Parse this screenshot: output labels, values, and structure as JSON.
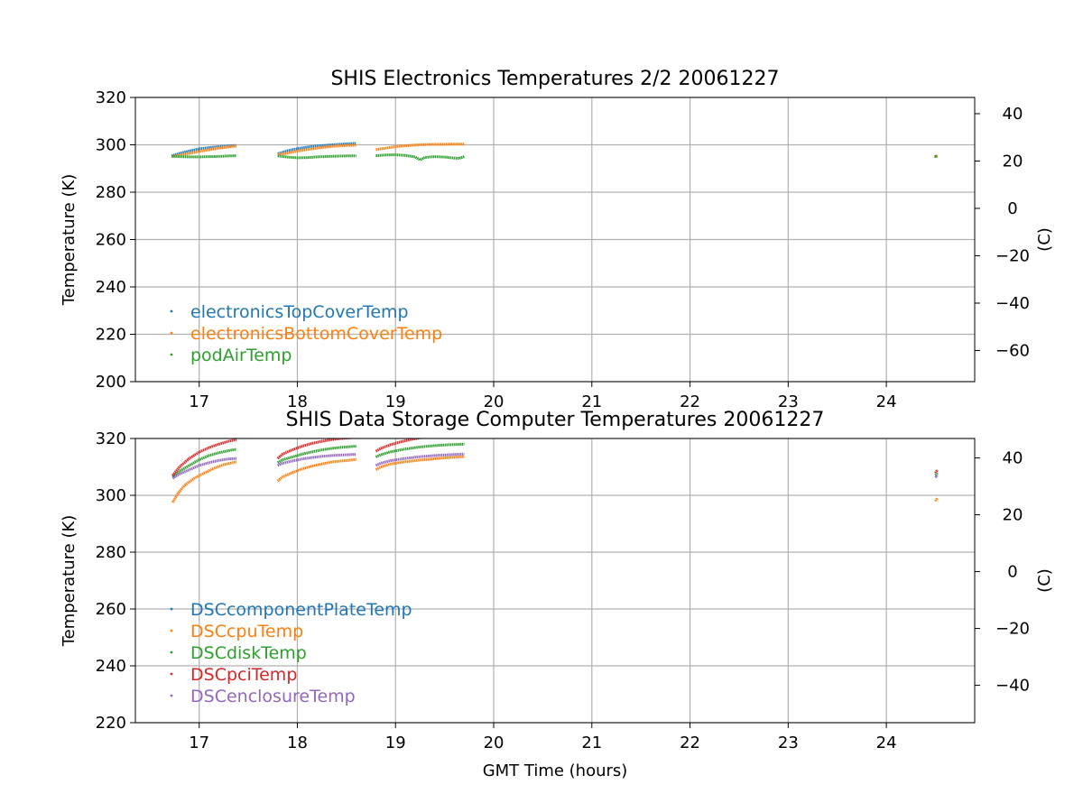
{
  "chart_data": [
    {
      "type": "scatter",
      "title": "SHIS Electronics Temperatures 2/2 20061227",
      "xlabel": "",
      "ylabel": "Temperature (K)",
      "ylabel_right": "(C)",
      "xlim": [
        16.35,
        24.9
      ],
      "ylim": [
        200,
        320
      ],
      "xticks": [
        17,
        18,
        19,
        20,
        21,
        22,
        23,
        24
      ],
      "yticks": [
        200,
        220,
        240,
        260,
        280,
        300,
        320
      ],
      "yticks_right": [
        -60,
        -40,
        -20,
        0,
        20,
        40
      ],
      "grid": true,
      "legend_position": "lower-left",
      "series": [
        {
          "name": "electronicsTopCoverTemp",
          "color": "#1f77b4",
          "segments": [
            [
              [
                16.72,
                295.3
              ],
              [
                16.8,
                296.4
              ],
              [
                16.9,
                297.4
              ],
              [
                17.0,
                298.3
              ],
              [
                17.1,
                298.8
              ],
              [
                17.2,
                299.2
              ],
              [
                17.3,
                299.5
              ],
              [
                17.38,
                299.7
              ]
            ],
            [
              [
                17.8,
                296.2
              ],
              [
                17.9,
                297.5
              ],
              [
                18.0,
                298.4
              ],
              [
                18.1,
                299.0
              ],
              [
                18.2,
                299.5
              ],
              [
                18.3,
                299.8
              ],
              [
                18.4,
                300.1
              ],
              [
                18.5,
                300.4
              ],
              [
                18.6,
                300.6
              ]
            ]
          ]
        },
        {
          "name": "electronicsBottomCoverTemp",
          "color": "#ff7f0e",
          "segments": [
            [
              [
                16.72,
                295.0
              ],
              [
                16.8,
                295.6
              ],
              [
                16.9,
                296.4
              ],
              [
                17.0,
                297.2
              ],
              [
                17.1,
                297.9
              ],
              [
                17.2,
                298.6
              ],
              [
                17.3,
                299.1
              ],
              [
                17.38,
                299.5
              ]
            ],
            [
              [
                17.8,
                295.8
              ],
              [
                17.9,
                296.5
              ],
              [
                18.0,
                297.3
              ],
              [
                18.1,
                298.0
              ],
              [
                18.2,
                298.6
              ],
              [
                18.3,
                299.1
              ],
              [
                18.4,
                299.5
              ],
              [
                18.5,
                299.7
              ],
              [
                18.6,
                299.9
              ]
            ],
            [
              [
                18.8,
                298.0
              ],
              [
                18.9,
                298.6
              ],
              [
                19.0,
                299.2
              ],
              [
                19.1,
                299.6
              ],
              [
                19.2,
                299.9
              ],
              [
                19.3,
                300.1
              ],
              [
                19.4,
                300.2
              ],
              [
                19.5,
                300.2
              ],
              [
                19.6,
                300.3
              ],
              [
                19.7,
                300.3
              ]
            ],
            [
              [
                24.5,
                295.1
              ],
              [
                24.52,
                295.3
              ]
            ]
          ]
        },
        {
          "name": "podAirTemp",
          "color": "#2ca02c",
          "segments": [
            [
              [
                16.72,
                295.2
              ],
              [
                16.8,
                295.0
              ],
              [
                16.9,
                294.9
              ],
              [
                17.0,
                294.9
              ],
              [
                17.1,
                295.0
              ],
              [
                17.2,
                295.1
              ],
              [
                17.3,
                295.3
              ],
              [
                17.38,
                295.4
              ]
            ],
            [
              [
                17.8,
                295.3
              ],
              [
                17.9,
                294.8
              ],
              [
                18.0,
                294.5
              ],
              [
                18.1,
                294.6
              ],
              [
                18.2,
                294.9
              ],
              [
                18.3,
                295.1
              ],
              [
                18.4,
                295.2
              ],
              [
                18.5,
                295.3
              ],
              [
                18.6,
                295.3
              ]
            ],
            [
              [
                18.8,
                295.4
              ],
              [
                18.9,
                295.7
              ],
              [
                19.0,
                295.8
              ],
              [
                19.1,
                295.5
              ],
              [
                19.2,
                294.9
              ],
              [
                19.25,
                293.6
              ],
              [
                19.3,
                294.7
              ],
              [
                19.4,
                295.0
              ],
              [
                19.5,
                294.8
              ],
              [
                19.6,
                294.4
              ],
              [
                19.65,
                294.3
              ],
              [
                19.7,
                295.0
              ]
            ],
            [
              [
                24.49,
                295.0
              ],
              [
                24.52,
                295.2
              ]
            ]
          ]
        }
      ]
    },
    {
      "type": "scatter",
      "title": "SHIS Data Storage Computer Temperatures 20061227",
      "xlabel": "GMT Time (hours)",
      "ylabel": "Temperature (K)",
      "ylabel_right": "(C)",
      "xlim": [
        16.35,
        24.9
      ],
      "ylim": [
        220,
        320
      ],
      "xticks": [
        17,
        18,
        19,
        20,
        21,
        22,
        23,
        24
      ],
      "yticks": [
        220,
        240,
        260,
        280,
        300,
        320
      ],
      "yticks_right": [
        -40,
        -20,
        0,
        20,
        40
      ],
      "grid": true,
      "legend_position": "lower-left",
      "series": [
        {
          "name": "DSCcomponentPlateTemp",
          "color": "#1f77b4",
          "segments": []
        },
        {
          "name": "DSCcpuTemp",
          "color": "#ff7f0e",
          "segments": [
            [
              [
                16.73,
                297.5
              ],
              [
                16.78,
                300.5
              ],
              [
                16.85,
                303.5
              ],
              [
                16.95,
                306.0
              ],
              [
                17.05,
                307.8
              ],
              [
                17.15,
                309.5
              ],
              [
                17.25,
                310.8
              ],
              [
                17.38,
                311.8
              ]
            ],
            [
              [
                17.8,
                305.0
              ],
              [
                17.85,
                306.5
              ],
              [
                17.95,
                308.0
              ],
              [
                18.05,
                309.3
              ],
              [
                18.15,
                310.3
              ],
              [
                18.25,
                311.0
              ],
              [
                18.35,
                311.7
              ],
              [
                18.45,
                312.1
              ],
              [
                18.6,
                312.6
              ]
            ],
            [
              [
                18.8,
                309.0
              ],
              [
                18.85,
                310.0
              ],
              [
                18.95,
                311.0
              ],
              [
                19.1,
                311.8
              ],
              [
                19.25,
                312.4
              ],
              [
                19.4,
                312.9
              ],
              [
                19.55,
                313.3
              ],
              [
                19.7,
                313.6
              ]
            ],
            [
              [
                24.5,
                298.0
              ],
              [
                24.52,
                299.0
              ]
            ]
          ]
        },
        {
          "name": "DSCdiskTemp",
          "color": "#2ca02c",
          "segments": [
            [
              [
                16.73,
                306.5
              ],
              [
                16.8,
                308.5
              ],
              [
                16.9,
                310.5
              ],
              [
                17.0,
                312.5
              ],
              [
                17.1,
                314.0
              ],
              [
                17.2,
                315.0
              ],
              [
                17.3,
                315.7
              ],
              [
                17.38,
                316.2
              ]
            ],
            [
              [
                17.8,
                311.5
              ],
              [
                17.85,
                312.5
              ],
              [
                17.95,
                313.5
              ],
              [
                18.05,
                314.5
              ],
              [
                18.15,
                315.3
              ],
              [
                18.25,
                316.0
              ],
              [
                18.35,
                316.5
              ],
              [
                18.45,
                316.9
              ],
              [
                18.6,
                317.3
              ]
            ],
            [
              [
                18.8,
                313.5
              ],
              [
                18.85,
                314.3
              ],
              [
                18.95,
                315.3
              ],
              [
                19.1,
                316.3
              ],
              [
                19.25,
                317.0
              ],
              [
                19.4,
                317.5
              ],
              [
                19.55,
                317.8
              ],
              [
                19.7,
                318.0
              ]
            ],
            [
              [
                24.5,
                307.0
              ],
              [
                24.52,
                307.8
              ]
            ]
          ]
        },
        {
          "name": "DSCpciTemp",
          "color": "#d62728",
          "segments": [
            [
              [
                16.73,
                307.0
              ],
              [
                16.8,
                310.0
              ],
              [
                16.9,
                313.0
              ],
              [
                17.0,
                315.2
              ],
              [
                17.1,
                316.8
              ],
              [
                17.2,
                318.0
              ],
              [
                17.3,
                319.0
              ],
              [
                17.38,
                319.6
              ]
            ],
            [
              [
                17.8,
                313.0
              ],
              [
                17.85,
                314.5
              ],
              [
                17.95,
                316.0
              ],
              [
                18.05,
                317.3
              ],
              [
                18.15,
                318.3
              ],
              [
                18.25,
                319.0
              ],
              [
                18.35,
                319.6
              ],
              [
                18.45,
                320.0
              ],
              [
                18.6,
                320.4
              ]
            ],
            [
              [
                18.8,
                315.5
              ],
              [
                18.85,
                316.5
              ],
              [
                18.95,
                317.8
              ],
              [
                19.05,
                318.8
              ],
              [
                19.15,
                319.6
              ],
              [
                19.25,
                320.2
              ]
            ],
            [
              [
                24.5,
                307.8
              ],
              [
                24.52,
                309.0
              ]
            ]
          ]
        },
        {
          "name": "DSCenclosureTemp",
          "color": "#9467bd",
          "segments": [
            [
              [
                16.73,
                306.0
              ],
              [
                16.8,
                307.5
              ],
              [
                16.9,
                309.0
              ],
              [
                17.0,
                310.5
              ],
              [
                17.1,
                311.5
              ],
              [
                17.2,
                312.3
              ],
              [
                17.3,
                312.8
              ],
              [
                17.38,
                313.0
              ]
            ],
            [
              [
                17.8,
                310.5
              ],
              [
                17.85,
                311.3
              ],
              [
                17.95,
                312.1
              ],
              [
                18.05,
                312.8
              ],
              [
                18.15,
                313.3
              ],
              [
                18.25,
                313.7
              ],
              [
                18.35,
                314.0
              ],
              [
                18.45,
                314.2
              ],
              [
                18.6,
                314.4
              ]
            ],
            [
              [
                18.8,
                310.5
              ],
              [
                18.85,
                311.3
              ],
              [
                18.95,
                312.2
              ],
              [
                19.1,
                313.0
              ],
              [
                19.25,
                313.6
              ],
              [
                19.4,
                314.0
              ],
              [
                19.55,
                314.3
              ],
              [
                19.7,
                314.5
              ]
            ],
            [
              [
                24.5,
                306.3
              ],
              [
                24.52,
                307.0
              ]
            ]
          ]
        }
      ]
    }
  ]
}
